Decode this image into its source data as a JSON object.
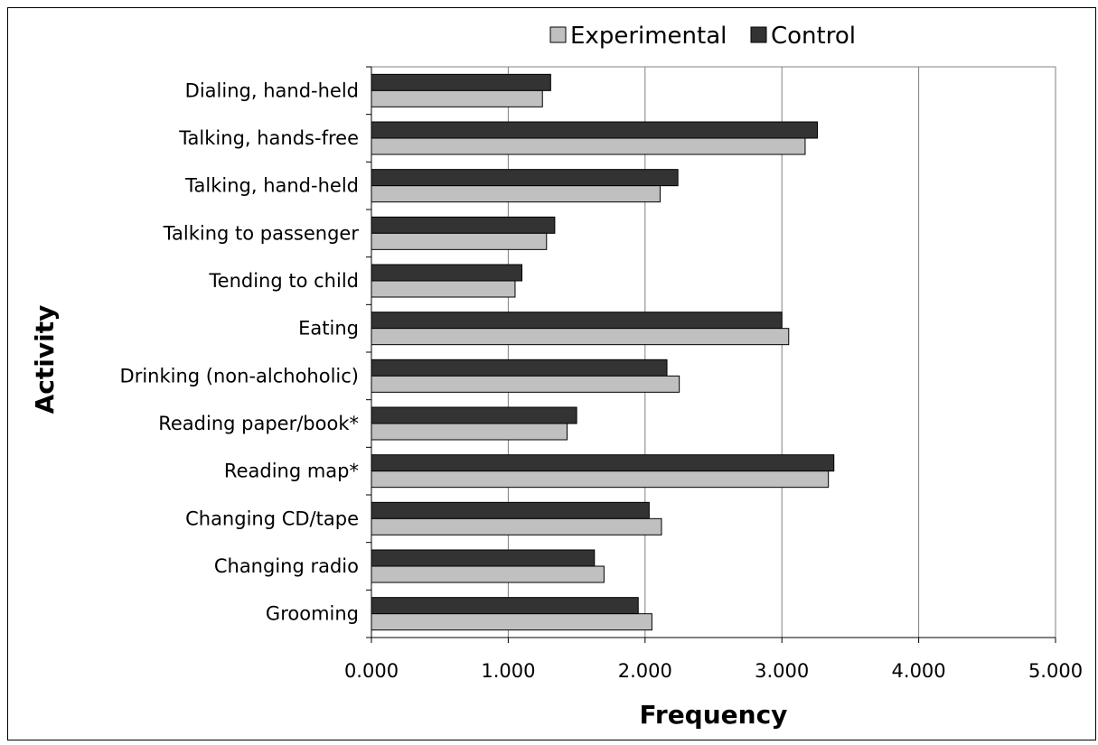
{
  "chart_data": {
    "type": "bar",
    "orientation": "horizontal",
    "title": "",
    "xlabel": "Frequency",
    "ylabel": "Activity",
    "xlim": [
      0,
      5
    ],
    "x_ticks": [
      0,
      1,
      2,
      3,
      4,
      5
    ],
    "x_tick_labels": [
      "0.000",
      "1.000",
      "2.000",
      "3.000",
      "4.000",
      "5.000"
    ],
    "grid": "vertical major gridlines",
    "legend_position": "top",
    "categories": [
      "Dialing, hand-held",
      "Talking, hands-free",
      "Talking, hand-held",
      "Talking to passenger",
      "Tending to child",
      "Eating",
      "Drinking (non-alchoholic)",
      "Reading paper/book*",
      "Reading map*",
      "Changing CD/tape",
      "Changing radio",
      "Grooming"
    ],
    "series": [
      {
        "name": "Experimental",
        "color": "#c0c0c0",
        "values": [
          1.25,
          3.17,
          2.11,
          1.28,
          1.05,
          3.05,
          2.25,
          1.43,
          3.34,
          2.12,
          1.7,
          2.05
        ]
      },
      {
        "name": "Control",
        "color": "#333333",
        "values": [
          1.31,
          3.26,
          2.24,
          1.34,
          1.1,
          3.0,
          2.16,
          1.5,
          3.38,
          2.03,
          1.63,
          1.95
        ]
      }
    ]
  }
}
